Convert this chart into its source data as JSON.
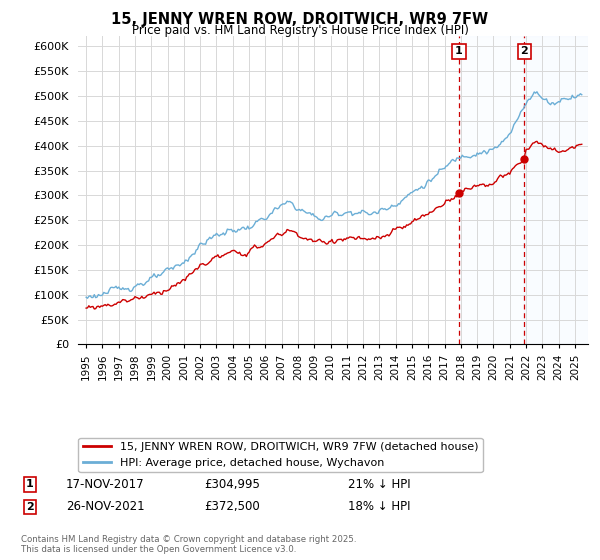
{
  "title": "15, JENNY WREN ROW, DROITWICH, WR9 7FW",
  "subtitle": "Price paid vs. HM Land Registry's House Price Index (HPI)",
  "ytick_labels": [
    "£0",
    "£50K",
    "£100K",
    "£150K",
    "£200K",
    "£250K",
    "£300K",
    "£350K",
    "£400K",
    "£450K",
    "£500K",
    "£550K",
    "£600K"
  ],
  "yticks": [
    0,
    50000,
    100000,
    150000,
    200000,
    250000,
    300000,
    350000,
    400000,
    450000,
    500000,
    550000,
    600000
  ],
  "hpi_color": "#6baed6",
  "price_color": "#cc0000",
  "marker1_year": 2017.88,
  "marker2_year": 2021.9,
  "marker1_price_val": 304995,
  "marker2_price_val": 372500,
  "marker1_date": "17-NOV-2017",
  "marker1_price": "£304,995",
  "marker1_pct": "21% ↓ HPI",
  "marker2_date": "26-NOV-2021",
  "marker2_price": "£372,500",
  "marker2_pct": "18% ↓ HPI",
  "legend_label1": "15, JENNY WREN ROW, DROITWICH, WR9 7FW (detached house)",
  "legend_label2": "HPI: Average price, detached house, Wychavon",
  "footer": "Contains HM Land Registry data © Crown copyright and database right 2025.\nThis data is licensed under the Open Government Licence v3.0.",
  "background_color": "#ffffff",
  "grid_color": "#d8d8d8",
  "shade_color": "#ddeeff",
  "dashed_color": "#cc0000",
  "xlim_start": 1994.5,
  "xlim_end": 2025.8,
  "ylim": [
    0,
    620000
  ]
}
